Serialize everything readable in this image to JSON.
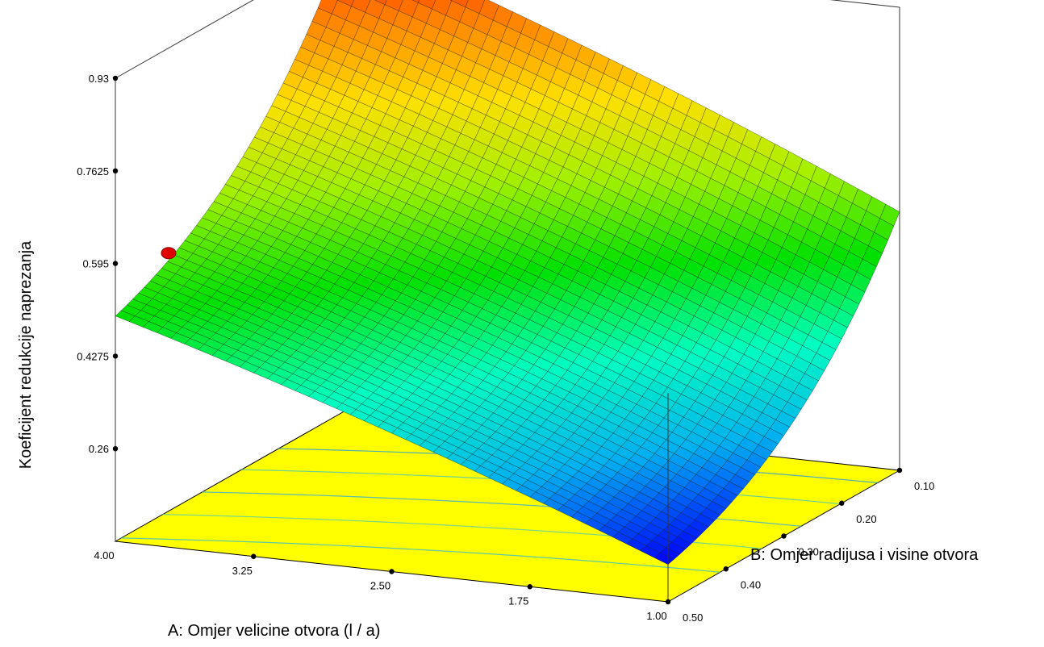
{
  "chart_data": {
    "type": "surface3d",
    "title": "",
    "zlabel": "Koeficijent redukcije naprezanja",
    "xlabel": "A: Omjer velicine otvora (l / a)",
    "ylabel": "B: Omjer radijusa i visine otvora",
    "x_ticks": [
      "4.00",
      "3.25",
      "2.50",
      "1.75",
      "1.00"
    ],
    "y_ticks": [
      "0.10",
      "0.20",
      "0.30",
      "0.40",
      "0.50"
    ],
    "z_ticks": [
      "0.93",
      "0.7625",
      "0.595",
      "0.4275",
      "0.26"
    ],
    "xlim": [
      1.0,
      4.0
    ],
    "ylim": [
      0.1,
      0.5
    ],
    "zlim": [
      0.26,
      0.93
    ],
    "z_floor": 0.0925,
    "grid": false,
    "design_point": {
      "x": 4.0,
      "y": 0.5,
      "z": 0.57
    },
    "surface_corner_values": [
      {
        "x": 4.0,
        "y": 0.5,
        "z": 0.5
      },
      {
        "x": 4.0,
        "y": 0.1,
        "z": 0.95
      },
      {
        "x": 1.0,
        "y": 0.1,
        "z": 0.56
      },
      {
        "x": 1.0,
        "y": 0.5,
        "z": 0.16
      }
    ],
    "colormap": [
      "#0000ff",
      "#00b0f0",
      "#00ffc0",
      "#00e000",
      "#a0f000",
      "#ffe000",
      "#ff8000",
      "#ff0000"
    ],
    "floor_color": "#ffff00"
  }
}
